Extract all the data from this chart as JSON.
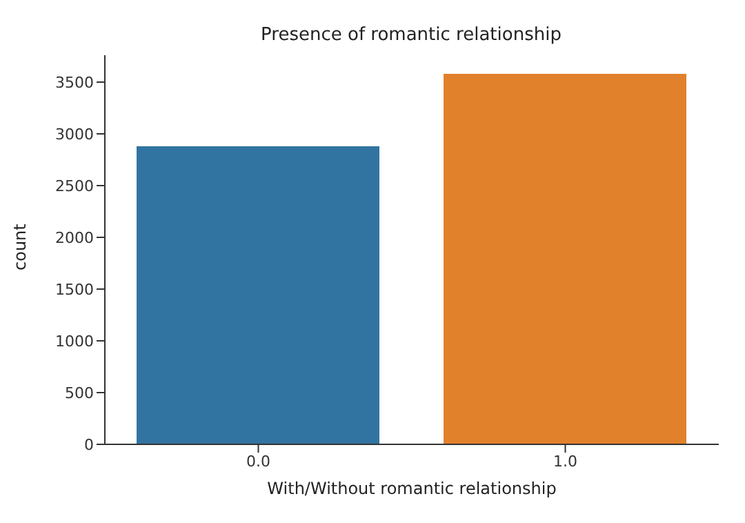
{
  "chart_data": {
    "type": "bar",
    "title": "Presence of romantic relationship",
    "xlabel": "With/Without romantic relationship",
    "ylabel": "count",
    "categories": [
      "0.0",
      "1.0"
    ],
    "values": [
      2880,
      3580
    ],
    "colors": [
      "#3274a1",
      "#e1812c"
    ],
    "ylim": [
      0,
      3760
    ],
    "yticks": [
      0,
      500,
      1000,
      1500,
      2000,
      2500,
      3000,
      3500
    ],
    "grid": false,
    "legend": false
  }
}
